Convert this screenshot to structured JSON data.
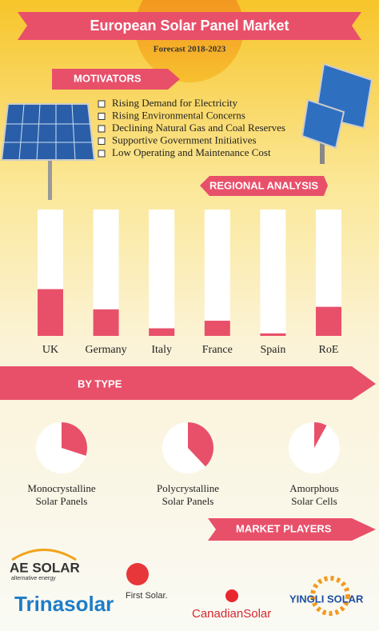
{
  "header": {
    "title": "European Solar Panel Market",
    "subtitle": "Forecast 2018-2023"
  },
  "motivators": {
    "title": "MOTIVATORS",
    "items": [
      "Rising Demand for Electricity",
      "Rising Environmental Concerns",
      "Declining Natural Gas and Coal Reserves",
      "Supportive Government Initiatives",
      "Low Operating and Maintenance Cost"
    ]
  },
  "chart_data": [
    {
      "type": "bar",
      "title": "REGIONAL ANALYSIS",
      "categories": [
        "UK",
        "Germany",
        "Italy",
        "France",
        "Spain",
        "RoE"
      ],
      "values": [
        37,
        21,
        6,
        12,
        2,
        23
      ],
      "ylim": [
        0,
        100
      ],
      "color": "#e8506a"
    },
    {
      "type": "pie",
      "title": "BY TYPE",
      "categories": [
        "Monocrystalline\nSolar Panels",
        "Polycrystalline\nSolar Panels",
        "Amorphous\nSolar Cells"
      ],
      "values": [
        30,
        38,
        8
      ],
      "ylim": [
        0,
        100
      ],
      "color": "#e8506a"
    }
  ],
  "market_players": {
    "title": "MARKET PLAYERS",
    "logos": [
      "AE SOLAR",
      "alternative energy",
      "Trinasolar",
      "First Solar.",
      "CanadianSolar",
      "YINGLI SOLAR"
    ]
  }
}
